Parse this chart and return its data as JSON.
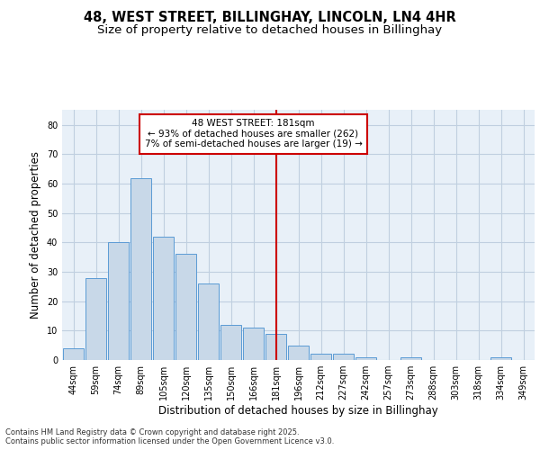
{
  "title_line1": "48, WEST STREET, BILLINGHAY, LINCOLN, LN4 4HR",
  "title_line2": "Size of property relative to detached houses in Billinghay",
  "xlabel": "Distribution of detached houses by size in Billinghay",
  "ylabel": "Number of detached properties",
  "bar_labels": [
    "44sqm",
    "59sqm",
    "74sqm",
    "89sqm",
    "105sqm",
    "120sqm",
    "135sqm",
    "150sqm",
    "166sqm",
    "181sqm",
    "196sqm",
    "212sqm",
    "227sqm",
    "242sqm",
    "257sqm",
    "273sqm",
    "288sqm",
    "303sqm",
    "318sqm",
    "334sqm",
    "349sqm"
  ],
  "bar_values": [
    4,
    28,
    40,
    62,
    42,
    36,
    26,
    12,
    11,
    9,
    5,
    2,
    2,
    1,
    0,
    1,
    0,
    0,
    0,
    1,
    0
  ],
  "bar_color": "#c8d8e8",
  "bar_edge_color": "#5b9bd5",
  "vline_x_idx": 9,
  "vline_color": "#cc0000",
  "annotation_text": "48 WEST STREET: 181sqm\n← 93% of detached houses are smaller (262)\n7% of semi-detached houses are larger (19) →",
  "annotation_box_edgecolor": "#cc0000",
  "annotation_box_facecolor": "#ffffff",
  "ylim": [
    0,
    85
  ],
  "yticks": [
    0,
    10,
    20,
    30,
    40,
    50,
    60,
    70,
    80
  ],
  "grid_color": "#c0cfe0",
  "bg_color": "#e8f0f8",
  "footer_text": "Contains HM Land Registry data © Crown copyright and database right 2025.\nContains public sector information licensed under the Open Government Licence v3.0.",
  "title_fontsize": 10.5,
  "subtitle_fontsize": 9.5,
  "axis_label_fontsize": 8.5,
  "tick_fontsize": 7,
  "annotation_fontsize": 7.5,
  "footer_fontsize": 6
}
